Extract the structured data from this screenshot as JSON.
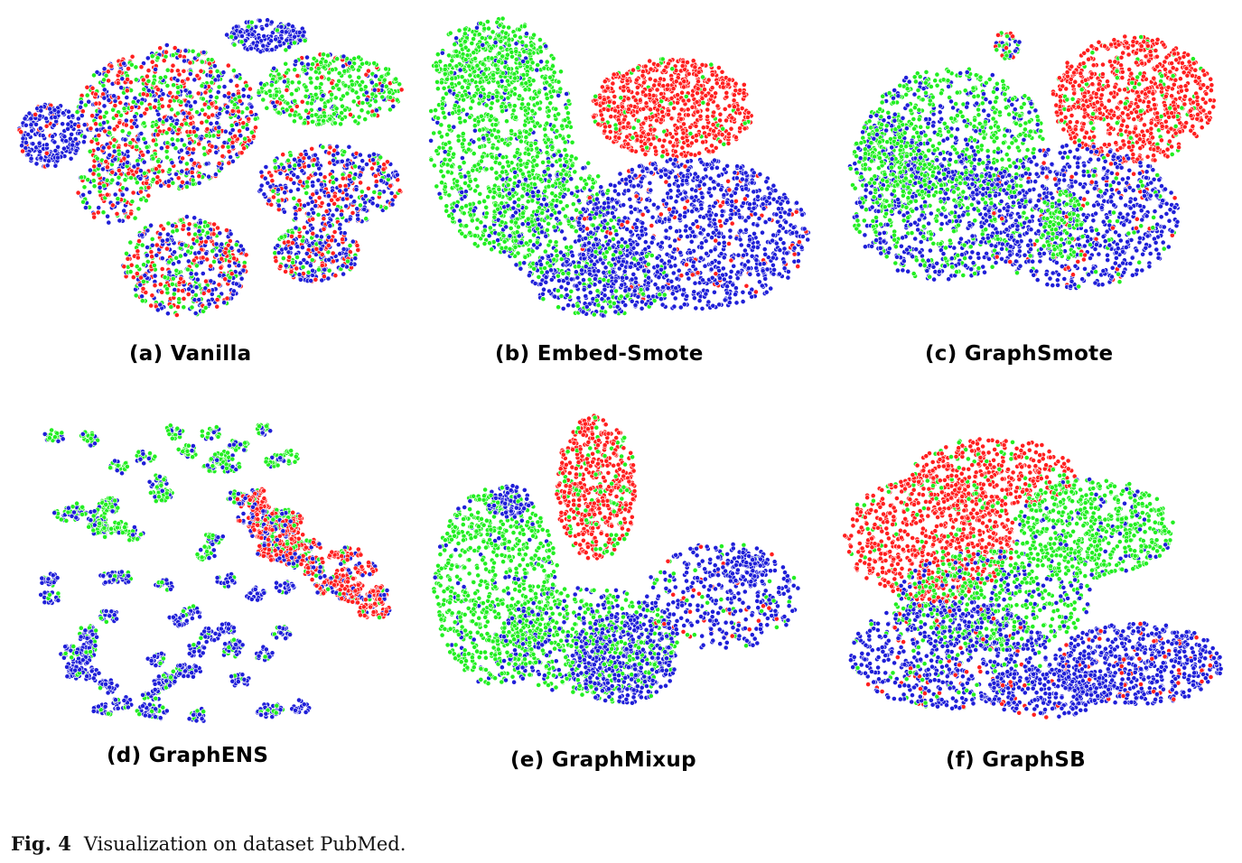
{
  "figure": {
    "label": "Fig. 4",
    "text": "Visualization on dataset PubMed."
  },
  "colors": {
    "class_a": "#ff1f1f",
    "class_b": "#22ee22",
    "class_c": "#1f1fd8",
    "point_edge": "#ffffff"
  },
  "panels": [
    {
      "id": "a",
      "caption": "(a) Vanilla"
    },
    {
      "id": "b",
      "caption": "(b) Embed-Smote"
    },
    {
      "id": "c",
      "caption": "(c) GraphSmote"
    },
    {
      "id": "d",
      "caption": "(d) GraphENS"
    },
    {
      "id": "e",
      "caption": "(e) GraphMixup"
    },
    {
      "id": "f",
      "caption": "(f) GraphSB"
    }
  ]
}
